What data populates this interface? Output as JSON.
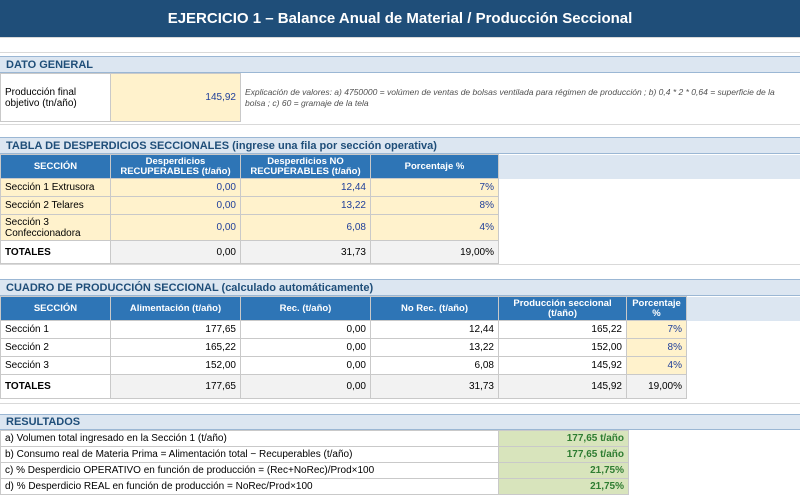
{
  "title": "EJERCICIO 1 – Balance Anual de Material / Producción Seccional",
  "dato_general": {
    "header": "DATO GENERAL",
    "label": "Producción final objetivo  (tn/año)",
    "value": "145,92",
    "note": "Explicación de valores: a) 4750000 = volúmen de ventas de bolsas ventilada para régimen de producción ; b) 0,4 * 2 * 0,64 = superficie de la bolsa ; c) 60 = gramaje de la tela"
  },
  "desperdicios": {
    "header": "TABLA DE DESPERDICIOS SECCIONALES  (ingrese una fila por sección operativa)",
    "columns": [
      "SECCIÓN",
      "Desperdicios RECUPERABLES (t/año)",
      "Desperdicios NO RECUPERABLES (t/año)",
      "Porcentaje %"
    ],
    "rows": [
      {
        "seccion": "Sección 1 Extrusora",
        "rec": "0,00",
        "norec": "12,44",
        "pct": "7%"
      },
      {
        "seccion": "Sección 2 Telares",
        "rec": "0,00",
        "norec": "13,22",
        "pct": "8%"
      },
      {
        "seccion": "Sección 3 Confeccionadora",
        "rec": "0,00",
        "norec": "6,08",
        "pct": "4%"
      }
    ],
    "totals": {
      "label": "TOTALES",
      "rec": "0,00",
      "norec": "31,73",
      "pct": "19,00%"
    }
  },
  "produccion": {
    "header": "CUADRO DE PRODUCCIÓN SECCIONAL  (calculado automáticamente)",
    "columns": [
      "SECCIÓN",
      "Alimentación (t/año)",
      "Rec. (t/año)",
      "No Rec. (t/año)",
      "Producción seccional (t/año)",
      "Porcentaje %"
    ],
    "rows": [
      {
        "seccion": "Sección 1",
        "alim": "177,65",
        "rec": "0,00",
        "norec": "12,44",
        "prod": "165,22",
        "pct": "7%"
      },
      {
        "seccion": "Sección 2",
        "alim": "165,22",
        "rec": "0,00",
        "norec": "13,22",
        "prod": "152,00",
        "pct": "8%"
      },
      {
        "seccion": "Sección 3",
        "alim": "152,00",
        "rec": "0,00",
        "norec": "6,08",
        "prod": "145,92",
        "pct": "4%"
      }
    ],
    "totals": {
      "label": "TOTALES",
      "alim": "177,65",
      "rec": "0,00",
      "norec": "31,73",
      "prod": "145,92",
      "pct": "19,00%"
    }
  },
  "resultados": {
    "header": "RESULTADOS",
    "rows": [
      {
        "label": "a) Volumen total ingresado en la Sección 1 (t/año)",
        "value": "177,65 t/año"
      },
      {
        "label": "b) Consumo real de Materia Prima  = Alimentación total − Recuperables (t/año)",
        "value": "177,65 t/año"
      },
      {
        "label": "c) % Desperdicio OPERATIVO en función de producción  = (Rec+NoRec)/Prod×100",
        "value": "21,75%"
      },
      {
        "label": "d) % Desperdicio REAL en función de producción  = NoRec/Prod×100",
        "value": "21,75%"
      }
    ]
  }
}
